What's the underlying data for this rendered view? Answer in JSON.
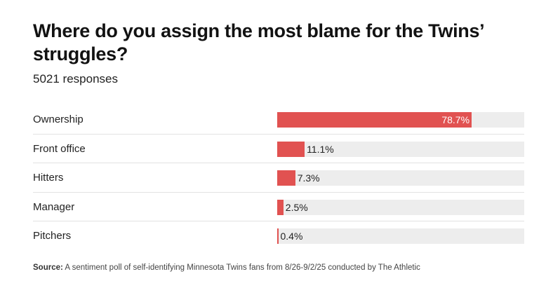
{
  "chart_data": {
    "type": "bar",
    "orientation": "horizontal",
    "title": "Where do you assign the most blame for the Twins’ struggles?",
    "subtitle": "5021 responses",
    "categories": [
      "Ownership",
      "Front office",
      "Hitters",
      "Manager",
      "Pitchers"
    ],
    "values": [
      78.7,
      11.1,
      7.3,
      2.5,
      0.4
    ],
    "value_labels": [
      "78.7%",
      "11.1%",
      "7.3%",
      "2.5%",
      "0.4%"
    ],
    "xlim": [
      0,
      100
    ],
    "unit": "%",
    "grid": false,
    "legend": "none",
    "bar_color": "#e15251",
    "track_color": "#ededed",
    "source_label": "Source:",
    "source_text": "A sentiment poll of self-identifying Minnesota Twins fans from 8/26-9/2/25 conducted by The Athletic"
  }
}
